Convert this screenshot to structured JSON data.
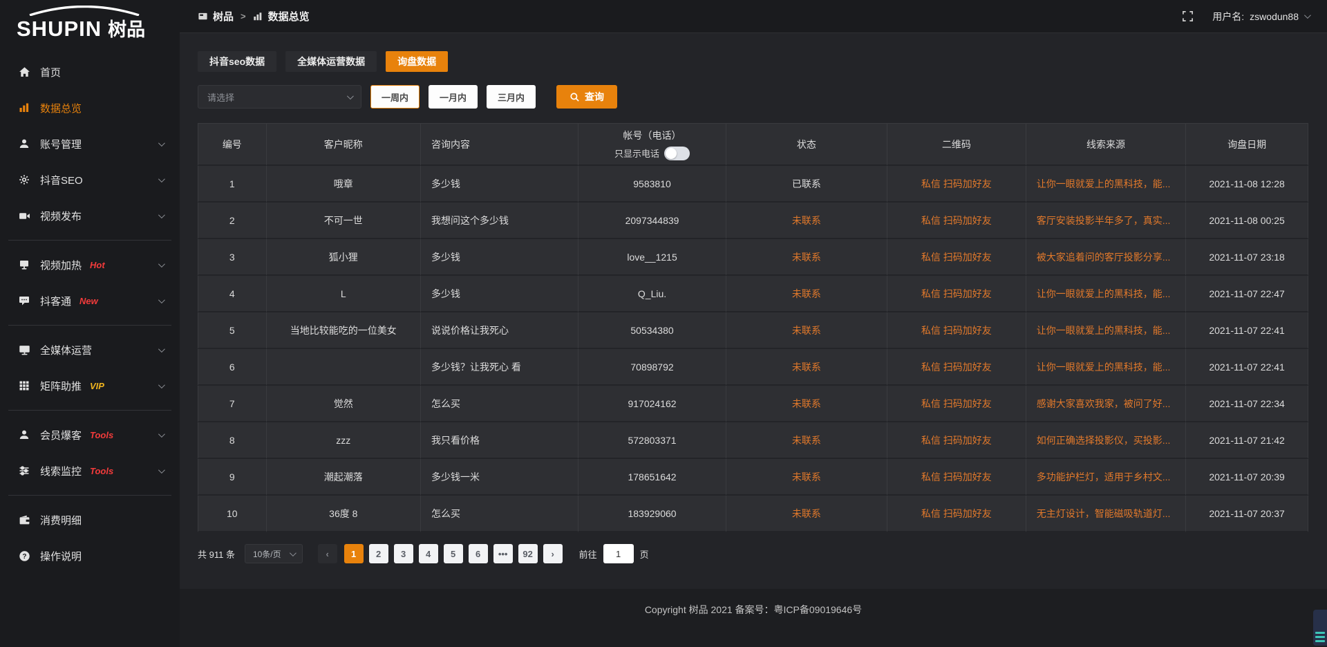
{
  "colors": {
    "accent": "#e8820c",
    "link_orange": "#e2792b",
    "badge_red": "#f33b3b",
    "badge_gold": "#f0b41e"
  },
  "logo": {
    "en": "SHUPIN",
    "cn": "树品"
  },
  "topbar": {
    "breadcrumbs": [
      {
        "key": "shupin",
        "icon": "app-icon",
        "label": "树品"
      },
      {
        "key": "data-overview",
        "icon": "data-icon",
        "label": "数据总览"
      }
    ],
    "separator": ">",
    "user_label": "用户名:",
    "username": "zswodun88"
  },
  "sidebar": {
    "items": [
      {
        "key": "home",
        "icon": "home-icon",
        "label": "首页"
      },
      {
        "key": "data-overview",
        "icon": "bar-chart-icon",
        "label": "数据总览",
        "active": true
      },
      {
        "key": "account-manage",
        "icon": "user-icon",
        "label": "账号管理",
        "chevron": true
      },
      {
        "key": "douyin-seo",
        "icon": "gear-icon",
        "label": "抖音SEO",
        "chevron": true
      },
      {
        "key": "video-publish",
        "icon": "video-publish-icon",
        "label": "视频发布",
        "chevron": true
      },
      {
        "divider": true
      },
      {
        "key": "video-heat",
        "icon": "video-heat-icon",
        "label": "视频加热",
        "badge": "Hot",
        "badge_color": "red",
        "chevron": true
      },
      {
        "key": "douketong",
        "icon": "chat-icon",
        "label": "抖客通",
        "badge": "New",
        "badge_color": "red",
        "chevron": true
      },
      {
        "divider": true
      },
      {
        "key": "media-ops",
        "icon": "monitor-icon",
        "label": "全媒体运营",
        "chevron": true
      },
      {
        "key": "matrix-boost",
        "icon": "grid-icon",
        "label": "矩阵助推",
        "badge": "VIP",
        "badge_color": "gold",
        "chevron": true
      },
      {
        "divider": true
      },
      {
        "key": "member-burst",
        "icon": "member-icon",
        "label": "会员爆客",
        "badge": "Tools",
        "badge_color": "red",
        "chevron": true
      },
      {
        "key": "clue-monitor",
        "icon": "sliders-icon",
        "label": "线索监控",
        "badge": "Tools",
        "badge_color": "red",
        "chevron": true
      },
      {
        "divider": true
      },
      {
        "key": "consume-detail",
        "icon": "wallet-icon",
        "label": "消费明细"
      },
      {
        "key": "help",
        "icon": "question-icon",
        "label": "操作说明"
      }
    ]
  },
  "tabs": [
    {
      "key": "douyin-seo-data",
      "label": "抖音seo数据",
      "active": false
    },
    {
      "key": "media-ops-data",
      "label": "全媒体运营数据",
      "active": false
    },
    {
      "key": "inquiry-data",
      "label": "询盘数据",
      "active": true
    }
  ],
  "filters": {
    "select_placeholder": "请选择",
    "ranges": [
      {
        "key": "one-week",
        "label": "一周内",
        "selected": true
      },
      {
        "key": "one-month",
        "label": "一月内",
        "selected": false
      },
      {
        "key": "three-months",
        "label": "三月内",
        "selected": false
      }
    ],
    "query_label": "查询"
  },
  "table": {
    "headers": [
      "编号",
      "客户昵称",
      "咨询内容",
      "帐号（电话）",
      "状态",
      "二维码",
      "线索来源",
      "询盘日期"
    ],
    "phone_toggle_label": "只显示电话",
    "rows": [
      {
        "no": "1",
        "nickname": "哦章",
        "content": "多少钱",
        "account": "9583810",
        "status": "已联系",
        "contacted": true,
        "qr": "私信 扫码加好友",
        "source": "让你一眼就爱上的黑科技，能...",
        "date": "2021-11-08 12:28"
      },
      {
        "no": "2",
        "nickname": "不可一世",
        "content": "我想问这个多少钱",
        "account": "2097344839",
        "status": "未联系",
        "contacted": false,
        "qr": "私信 扫码加好友",
        "source": "客厅安装投影半年多了，真实...",
        "date": "2021-11-08 00:25"
      },
      {
        "no": "3",
        "nickname": "狐小狸",
        "content": "多少钱",
        "account": "love__1215",
        "status": "未联系",
        "contacted": false,
        "qr": "私信 扫码加好友",
        "source": "被大家追着问的客厅投影分享...",
        "date": "2021-11-07 23:18"
      },
      {
        "no": "4",
        "nickname": "L",
        "content": "多少钱",
        "account": "Q_Liu.",
        "status": "未联系",
        "contacted": false,
        "qr": "私信 扫码加好友",
        "source": "让你一眼就爱上的黑科技，能...",
        "date": "2021-11-07 22:47"
      },
      {
        "no": "5",
        "nickname": "当地比较能吃的一位美女",
        "content": "说说价格让我死心",
        "account": "50534380",
        "status": "未联系",
        "contacted": false,
        "qr": "私信 扫码加好友",
        "source": "让你一眼就爱上的黑科技，能...",
        "date": "2021-11-07 22:41"
      },
      {
        "no": "6",
        "nickname": "",
        "content": "多少钱？让我死心 看",
        "account": "70898792",
        "status": "未联系",
        "contacted": false,
        "qr": "私信 扫码加好友",
        "source": "让你一眼就爱上的黑科技，能...",
        "date": "2021-11-07 22:41"
      },
      {
        "no": "7",
        "nickname": "觉然",
        "content": "怎么买",
        "account": "917024162",
        "status": "未联系",
        "contacted": false,
        "qr": "私信 扫码加好友",
        "source": "感谢大家喜欢我家，被问了好...",
        "date": "2021-11-07 22:34"
      },
      {
        "no": "8",
        "nickname": "zzz",
        "content": "我只看价格",
        "account": "572803371",
        "status": "未联系",
        "contacted": false,
        "qr": "私信 扫码加好友",
        "source": "如何正确选择投影仪，买投影...",
        "date": "2021-11-07 21:42"
      },
      {
        "no": "9",
        "nickname": "潮起潮落",
        "content": "多少钱一米",
        "account": "178651642",
        "status": "未联系",
        "contacted": false,
        "qr": "私信 扫码加好友",
        "source": "多功能护栏灯，适用于乡村文...",
        "date": "2021-11-07 20:39"
      },
      {
        "no": "10",
        "nickname": "36度 8",
        "content": "怎么买",
        "account": "183929060",
        "status": "未联系",
        "contacted": false,
        "qr": "私信 扫码加好友",
        "source": "无主灯设计，智能磁吸轨道灯...",
        "date": "2021-11-07 20:37"
      }
    ]
  },
  "pagination": {
    "total": "共 911 条",
    "page_size": "10条/页",
    "prev": "‹",
    "next": "›",
    "pages": [
      "1",
      "2",
      "3",
      "4",
      "5",
      "6",
      "•••",
      "92"
    ],
    "active_page": "1",
    "goto_label": "前往",
    "goto_value": "1",
    "goto_unit": "页"
  },
  "footer": {
    "copyright": "Copyright 树品 2021 备案号：粤ICP备09019646号"
  }
}
